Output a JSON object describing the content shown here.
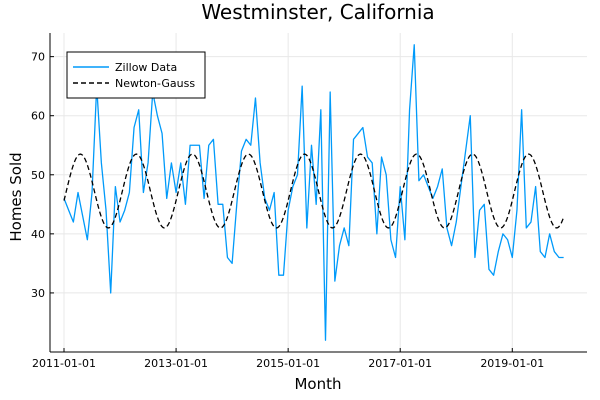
{
  "chart_data": {
    "type": "line",
    "title": "Westminster, California",
    "xlabel": "Month",
    "ylabel": "Homes Sold",
    "x_ticks": [
      "2011-01-01",
      "2013-01-01",
      "2015-01-01",
      "2017-01-01",
      "2019-01-01"
    ],
    "y_ticks": [
      30,
      40,
      50,
      60,
      70
    ],
    "xlim": [
      "2010-10-01",
      "2020-05-01"
    ],
    "ylim": [
      20,
      74
    ],
    "grid": true,
    "legend": "top-left",
    "series": [
      {
        "name": "Zillow Data",
        "style": "solid",
        "color": "#009AFA",
        "x": [
          "2011-01-01",
          "2011-02-01",
          "2011-03-01",
          "2011-04-01",
          "2011-05-01",
          "2011-06-01",
          "2011-07-01",
          "2011-08-01",
          "2011-09-01",
          "2011-10-01",
          "2011-11-01",
          "2011-12-01",
          "2012-01-01",
          "2012-02-01",
          "2012-03-01",
          "2012-04-01",
          "2012-05-01",
          "2012-06-01",
          "2012-07-01",
          "2012-08-01",
          "2012-09-01",
          "2012-10-01",
          "2012-11-01",
          "2012-12-01",
          "2013-01-01",
          "2013-02-01",
          "2013-03-01",
          "2013-04-01",
          "2013-05-01",
          "2013-06-01",
          "2013-07-01",
          "2013-08-01",
          "2013-09-01",
          "2013-10-01",
          "2013-11-01",
          "2013-12-01",
          "2014-01-01",
          "2014-02-01",
          "2014-03-01",
          "2014-04-01",
          "2014-05-01",
          "2014-06-01",
          "2014-07-01",
          "2014-08-01",
          "2014-09-01",
          "2014-10-01",
          "2014-11-01",
          "2014-12-01",
          "2015-01-01",
          "2015-02-01",
          "2015-03-01",
          "2015-04-01",
          "2015-05-01",
          "2015-06-01",
          "2015-07-01",
          "2015-08-01",
          "2015-09-01",
          "2015-10-01",
          "2015-11-01",
          "2015-12-01",
          "2016-01-01",
          "2016-02-01",
          "2016-03-01",
          "2016-04-01",
          "2016-05-01",
          "2016-06-01",
          "2016-07-01",
          "2016-08-01",
          "2016-09-01",
          "2016-10-01",
          "2016-11-01",
          "2016-12-01",
          "2017-01-01",
          "2017-02-01",
          "2017-03-01",
          "2017-04-01",
          "2017-05-01",
          "2017-06-01",
          "2017-07-01",
          "2017-08-01",
          "2017-09-01",
          "2017-10-01",
          "2017-11-01",
          "2017-12-01",
          "2018-01-01",
          "2018-02-01",
          "2018-03-01",
          "2018-04-01",
          "2018-05-01",
          "2018-06-01",
          "2018-07-01",
          "2018-08-01",
          "2018-09-01",
          "2018-10-01",
          "2018-11-01",
          "2018-12-01",
          "2019-01-01",
          "2019-02-01",
          "2019-03-01",
          "2019-04-01",
          "2019-05-01",
          "2019-06-01",
          "2019-07-01",
          "2019-08-01",
          "2019-09-01",
          "2019-10-01",
          "2019-11-01",
          "2019-12-01"
        ],
        "values": [
          46,
          44,
          42,
          47,
          43,
          39,
          47,
          65,
          52,
          44,
          30,
          48,
          42,
          44,
          47,
          58,
          61,
          47,
          52,
          64,
          60,
          57,
          46,
          52,
          47,
          52,
          45,
          55,
          55,
          55,
          46,
          55,
          56,
          45,
          45,
          36,
          35,
          45,
          54,
          56,
          55,
          63,
          52,
          46,
          44,
          47,
          33,
          33,
          44,
          48,
          50,
          65,
          41,
          55,
          45,
          61,
          22,
          64,
          32,
          38,
          41,
          38,
          56,
          57,
          58,
          53,
          52,
          40,
          53,
          50,
          39,
          36,
          48,
          39,
          61,
          72,
          49,
          50,
          48,
          46,
          48,
          51,
          41,
          38,
          42,
          48,
          54,
          60,
          36,
          44,
          45,
          34,
          33,
          37,
          40,
          39,
          36,
          44,
          61,
          41,
          42,
          48,
          37,
          36,
          40,
          37,
          36,
          36
        ]
      },
      {
        "name": "Newton-Gauss",
        "style": "dashed",
        "color": "#000000",
        "fit": {
          "mean": 47.25,
          "amplitude": 6.25,
          "period_months": 12,
          "peak_month_offset": 3.5
        }
      }
    ]
  }
}
